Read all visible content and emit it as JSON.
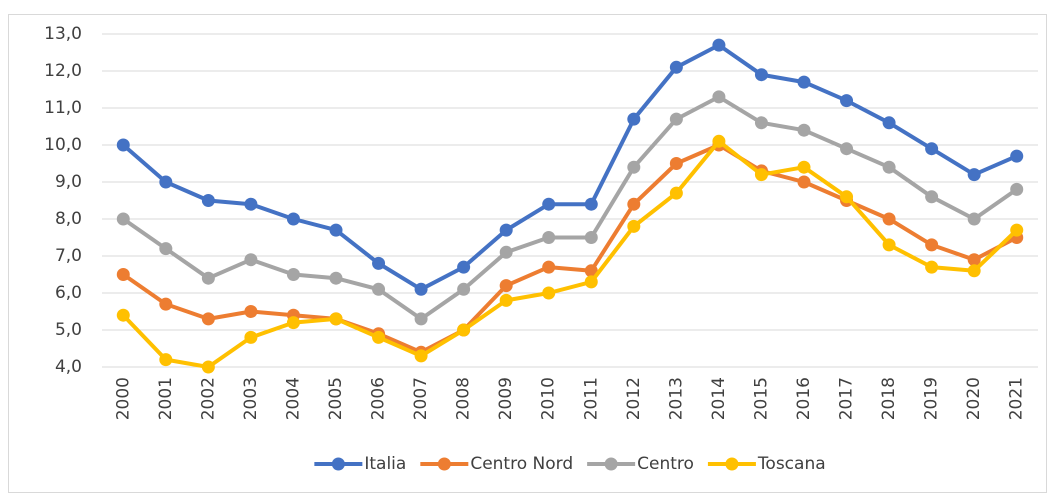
{
  "chart_data": {
    "type": "line",
    "categories": [
      "2000",
      "2001",
      "2002",
      "2003",
      "2004",
      "2005",
      "2006",
      "2007",
      "2008",
      "2009",
      "2010",
      "2011",
      "2012",
      "2013",
      "2014",
      "2015",
      "2016",
      "2017",
      "2018",
      "2019",
      "2020",
      "2021"
    ],
    "series": [
      {
        "name": "Italia",
        "color": "#4472c4",
        "values": [
          10.0,
          9.0,
          8.5,
          8.4,
          8.0,
          7.7,
          6.8,
          6.1,
          6.7,
          7.7,
          8.4,
          8.4,
          10.7,
          12.1,
          12.7,
          11.9,
          11.7,
          11.2,
          10.6,
          9.9,
          9.2,
          9.7
        ]
      },
      {
        "name": "Centro Nord",
        "color": "#ed7d31",
        "values": [
          6.5,
          5.7,
          5.3,
          5.5,
          5.4,
          5.3,
          4.9,
          4.4,
          5.0,
          6.2,
          6.7,
          6.6,
          8.4,
          9.5,
          10.0,
          9.3,
          9.0,
          8.5,
          8.0,
          7.3,
          6.9,
          7.5
        ]
      },
      {
        "name": "Centro",
        "color": "#a5a5a5",
        "values": [
          8.0,
          7.2,
          6.4,
          6.9,
          6.5,
          6.4,
          6.1,
          5.3,
          6.1,
          7.1,
          7.5,
          7.5,
          9.4,
          10.7,
          11.3,
          10.6,
          10.4,
          9.9,
          9.4,
          8.6,
          8.0,
          8.8
        ]
      },
      {
        "name": "Toscana",
        "color": "#ffc000",
        "values": [
          5.4,
          4.2,
          4.0,
          4.8,
          5.2,
          5.3,
          4.8,
          4.3,
          5.0,
          5.8,
          6.0,
          6.3,
          7.8,
          8.7,
          10.1,
          9.2,
          9.4,
          8.6,
          7.3,
          6.7,
          6.6,
          7.7
        ]
      }
    ],
    "ylim": [
      4,
      13
    ],
    "yticks": [
      {
        "value": 4,
        "label": "4,0"
      },
      {
        "value": 5,
        "label": "5,0"
      },
      {
        "value": 6,
        "label": "6,0"
      },
      {
        "value": 7,
        "label": "7,0"
      },
      {
        "value": 8,
        "label": "8,0"
      },
      {
        "value": 9,
        "label": "9,0"
      },
      {
        "value": 10,
        "label": "10,0"
      },
      {
        "value": 11,
        "label": "11,0"
      },
      {
        "value": 12,
        "label": "12,0"
      },
      {
        "value": 13,
        "label": "13,0"
      }
    ],
    "grid": true,
    "legend": "bottom"
  }
}
